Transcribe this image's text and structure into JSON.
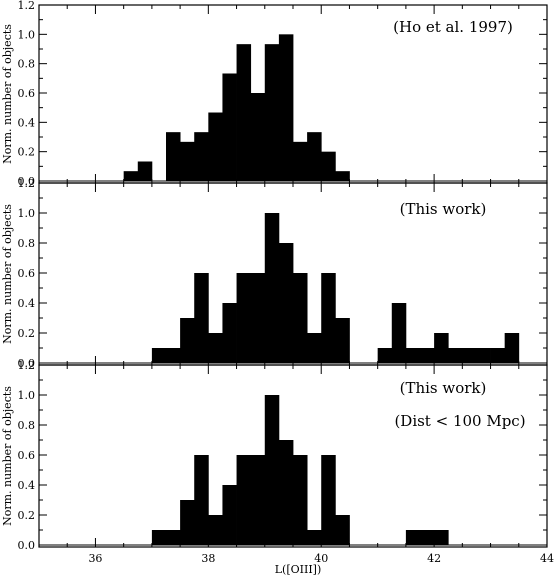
{
  "chart_data": {
    "type": "bar",
    "xlabel": "L([OIII])",
    "ylabel": "Norm. number of objects",
    "xlim": [
      35,
      44
    ],
    "xticks": [
      "36",
      "38",
      "40",
      "42",
      "44"
    ],
    "ylim": [
      0,
      1.2
    ],
    "yticks": [
      "0.0",
      "0.2",
      "0.4",
      "0.6",
      "0.8",
      "1.0",
      "1.2"
    ],
    "bin_width": 0.25,
    "panels": [
      {
        "annotations": [
          "(Ho et al. 1997)"
        ],
        "bins": [
          {
            "x0": 36.5,
            "y": 0.067
          },
          {
            "x0": 36.75,
            "y": 0.133
          },
          {
            "x0": 37.25,
            "y": 0.333
          },
          {
            "x0": 37.5,
            "y": 0.267
          },
          {
            "x0": 37.75,
            "y": 0.333
          },
          {
            "x0": 38.0,
            "y": 0.467
          },
          {
            "x0": 38.25,
            "y": 0.733
          },
          {
            "x0": 38.5,
            "y": 0.933
          },
          {
            "x0": 38.75,
            "y": 0.6
          },
          {
            "x0": 39.0,
            "y": 0.933
          },
          {
            "x0": 39.25,
            "y": 1.0
          },
          {
            "x0": 39.5,
            "y": 0.267
          },
          {
            "x0": 39.75,
            "y": 0.333
          },
          {
            "x0": 40.0,
            "y": 0.2
          },
          {
            "x0": 40.25,
            "y": 0.067
          }
        ]
      },
      {
        "annotations": [
          "(This work)"
        ],
        "bins": [
          {
            "x0": 37.0,
            "y": 0.1
          },
          {
            "x0": 37.25,
            "y": 0.1
          },
          {
            "x0": 37.5,
            "y": 0.3
          },
          {
            "x0": 37.75,
            "y": 0.6
          },
          {
            "x0": 38.0,
            "y": 0.2
          },
          {
            "x0": 38.25,
            "y": 0.4
          },
          {
            "x0": 38.5,
            "y": 0.6
          },
          {
            "x0": 38.75,
            "y": 0.6
          },
          {
            "x0": 39.0,
            "y": 1.0
          },
          {
            "x0": 39.25,
            "y": 0.8
          },
          {
            "x0": 39.5,
            "y": 0.6
          },
          {
            "x0": 39.75,
            "y": 0.2
          },
          {
            "x0": 40.0,
            "y": 0.6
          },
          {
            "x0": 40.25,
            "y": 0.3
          },
          {
            "x0": 41.0,
            "y": 0.1
          },
          {
            "x0": 41.25,
            "y": 0.4
          },
          {
            "x0": 41.5,
            "y": 0.1
          },
          {
            "x0": 41.75,
            "y": 0.1
          },
          {
            "x0": 42.0,
            "y": 0.2
          },
          {
            "x0": 42.25,
            "y": 0.1
          },
          {
            "x0": 42.5,
            "y": 0.1
          },
          {
            "x0": 42.75,
            "y": 0.1
          },
          {
            "x0": 43.0,
            "y": 0.1
          },
          {
            "x0": 43.25,
            "y": 0.2
          }
        ]
      },
      {
        "annotations": [
          "(This work)",
          "(Dist < 100 Mpc)"
        ],
        "bins": [
          {
            "x0": 37.0,
            "y": 0.1
          },
          {
            "x0": 37.25,
            "y": 0.1
          },
          {
            "x0": 37.5,
            "y": 0.3
          },
          {
            "x0": 37.75,
            "y": 0.6
          },
          {
            "x0": 38.0,
            "y": 0.2
          },
          {
            "x0": 38.25,
            "y": 0.4
          },
          {
            "x0": 38.5,
            "y": 0.6
          },
          {
            "x0": 38.75,
            "y": 0.6
          },
          {
            "x0": 39.0,
            "y": 1.0
          },
          {
            "x0": 39.25,
            "y": 0.7
          },
          {
            "x0": 39.5,
            "y": 0.6
          },
          {
            "x0": 39.75,
            "y": 0.1
          },
          {
            "x0": 40.0,
            "y": 0.6
          },
          {
            "x0": 40.25,
            "y": 0.2
          },
          {
            "x0": 41.5,
            "y": 0.1
          },
          {
            "x0": 41.75,
            "y": 0.1
          },
          {
            "x0": 42.0,
            "y": 0.1
          }
        ]
      }
    ],
    "grid": false,
    "colors": {
      "bars": "#000000",
      "axes": "#000000",
      "background": "#ffffff"
    }
  }
}
